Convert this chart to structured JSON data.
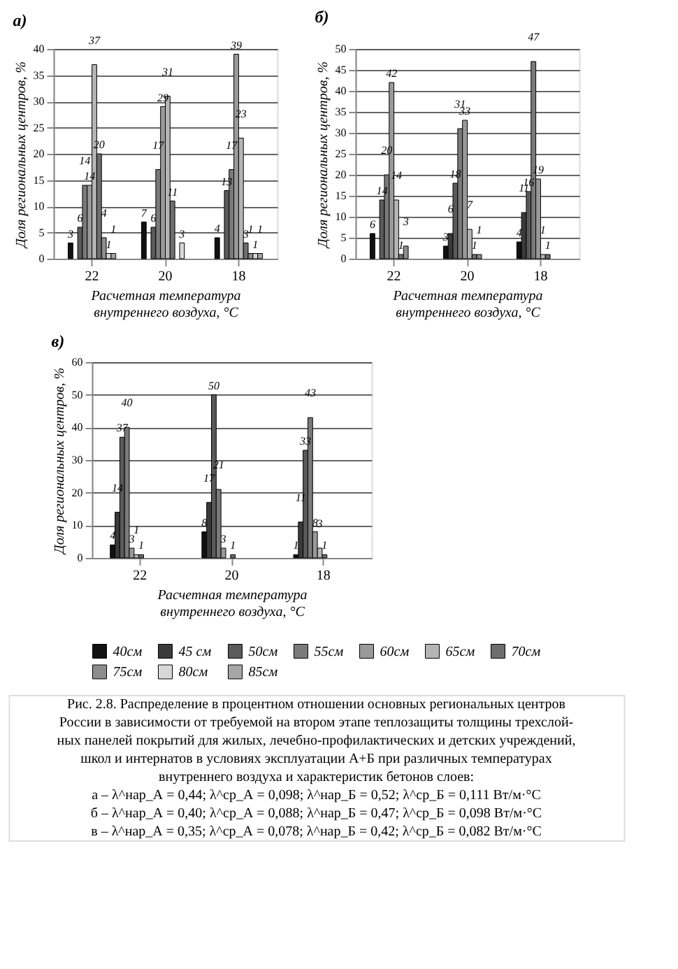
{
  "chart_data": [
    {
      "type": "bar",
      "title": "а)",
      "xlabel": "Расчетная температура внутреннего воздуха, °С",
      "ylabel": "Доля региональных центров, %",
      "categories": [
        "22",
        "20",
        "18"
      ],
      "ylim": [
        0,
        40
      ],
      "yticks": [
        0,
        5,
        10,
        15,
        20,
        25,
        30,
        35,
        40
      ],
      "grid": "y",
      "data_labels": true,
      "series": [
        {
          "color": "#111111",
          "values": [
            3,
            7,
            4
          ]
        },
        {
          "color": "#3a3a3a",
          "values": [
            null,
            null,
            null
          ]
        },
        {
          "color": "#5a5a5a",
          "values": [
            6,
            6,
            13
          ]
        },
        {
          "color": "#7a7a7a",
          "values": [
            14,
            17,
            17
          ]
        },
        {
          "color": "#9a9a9a",
          "values": [
            14,
            29,
            39
          ]
        },
        {
          "color": "#b5b5b5",
          "values": [
            37,
            31,
            23
          ]
        },
        {
          "color": "#6e6e6e",
          "values": [
            20,
            11,
            3
          ]
        },
        {
          "color": "#8c8c8c",
          "values": [
            4,
            null,
            1
          ]
        },
        {
          "color": "#d8d8d8",
          "values": [
            1,
            3,
            1
          ]
        },
        {
          "color": "#a6a6a6",
          "values": [
            1,
            null,
            1
          ]
        }
      ]
    },
    {
      "type": "bar",
      "title": "б)",
      "xlabel": "Расчетная температура внутреннего воздуха, °С",
      "ylabel": "Доля региональных центров, %",
      "categories": [
        "22",
        "20",
        "18"
      ],
      "ylim": [
        0,
        50
      ],
      "yticks": [
        0,
        5,
        10,
        15,
        20,
        25,
        30,
        35,
        40,
        45,
        50
      ],
      "grid": "y",
      "data_labels": true,
      "series": [
        {
          "color": "#111111",
          "values": [
            6,
            3,
            4
          ]
        },
        {
          "color": "#3a3a3a",
          "values": [
            null,
            6,
            11
          ]
        },
        {
          "color": "#5a5a5a",
          "values": [
            14,
            18,
            16
          ]
        },
        {
          "color": "#7a7a7a",
          "values": [
            20,
            31,
            47
          ]
        },
        {
          "color": "#9a9a9a",
          "values": [
            42,
            33,
            19
          ]
        },
        {
          "color": "#b5b5b5",
          "values": [
            14,
            7,
            1
          ]
        },
        {
          "color": "#6e6e6e",
          "values": [
            1,
            1,
            1
          ]
        },
        {
          "color": "#8c8c8c",
          "values": [
            3,
            1,
            null
          ]
        },
        {
          "color": "#d8d8d8",
          "values": [
            null,
            null,
            null
          ]
        },
        {
          "color": "#a6a6a6",
          "values": [
            null,
            null,
            null
          ]
        }
      ]
    },
    {
      "type": "bar",
      "title": "в)",
      "xlabel": "Расчетная температура внутреннего воздуха, °С",
      "ylabel": "Доля региональных центров, %",
      "categories": [
        "22",
        "20",
        "18"
      ],
      "ylim": [
        0,
        60
      ],
      "yticks": [
        0,
        10,
        20,
        30,
        40,
        50,
        60
      ],
      "grid": "y",
      "data_labels": true,
      "legend": "bottom",
      "series": [
        {
          "name": "40см",
          "color": "#111111",
          "values": [
            4,
            8,
            1
          ]
        },
        {
          "name": "45 см",
          "color": "#3a3a3a",
          "values": [
            14,
            17,
            11
          ]
        },
        {
          "name": "50см",
          "color": "#5a5a5a",
          "values": [
            37,
            50,
            33
          ]
        },
        {
          "name": "55см",
          "color": "#7a7a7a",
          "values": [
            40,
            21,
            43
          ]
        },
        {
          "name": "60см",
          "color": "#9a9a9a",
          "values": [
            3,
            3,
            8
          ]
        },
        {
          "name": "65см",
          "color": "#b5b5b5",
          "values": [
            1,
            null,
            3
          ]
        },
        {
          "name": "70см",
          "color": "#6e6e6e",
          "values": [
            1,
            1,
            1
          ]
        },
        {
          "name": "75см",
          "color": "#8c8c8c",
          "values": [
            null,
            null,
            null
          ]
        },
        {
          "name": "80см",
          "color": "#d8d8d8",
          "values": [
            null,
            null,
            null
          ]
        },
        {
          "name": "85см",
          "color": "#a6a6a6",
          "values": [
            null,
            null,
            null
          ]
        }
      ],
      "annotations": [
        "Рис. 2.8. Распределение в процентном отношении основных региональных центров",
        "России в зависимости от требуемой на втором этапе теплозащиты толщины трехслой-",
        "ных панелей покрытий для жилых, лечебно-профилактических и детских учреждений,",
        "школ и интернатов в условиях эксплуатации А+Б при различных температурах",
        "внутреннего воздуха и характеристик бетонов слоев:",
        "а – λ^нар_А = 0,44; λ^ср_А = 0,098; λ^нар_Б = 0,52; λ^ср_Б = 0,111 Вт/м·°С",
        "б – λ^нар_А = 0,40; λ^ср_А = 0,088; λ^нар_Б = 0,47; λ^ср_Б = 0,098 Вт/м·°С",
        "в – λ^нар_А = 0,35; λ^ср_А = 0,078; λ^нар_Б = 0,42; λ^ср_Б = 0,082 Вт/м·°С"
      ]
    }
  ]
}
